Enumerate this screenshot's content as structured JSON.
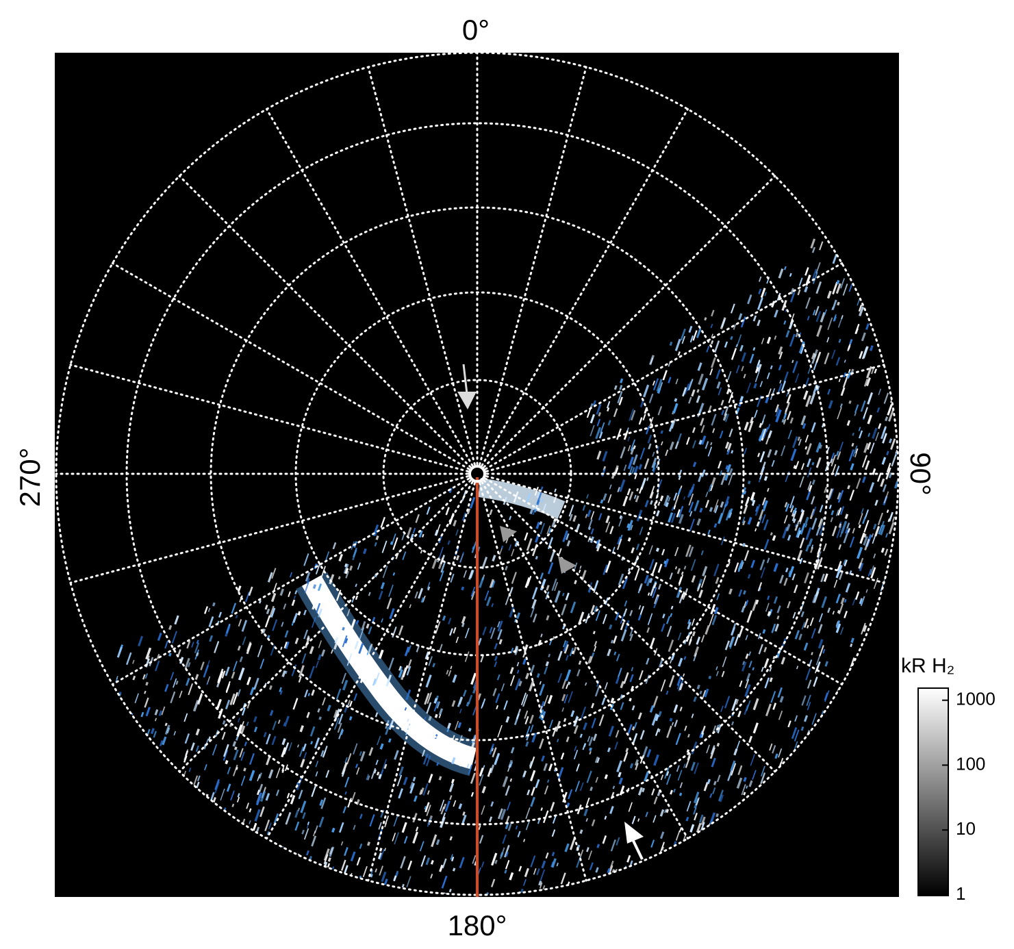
{
  "labels": {
    "top": "0°",
    "right": "90°",
    "bottom": "180°",
    "left": "270°"
  },
  "colorbar": {
    "title": "kR H₂",
    "scale": "log",
    "range": [
      1,
      1500
    ],
    "ticks": [
      1,
      10,
      100,
      1000
    ]
  }
}
